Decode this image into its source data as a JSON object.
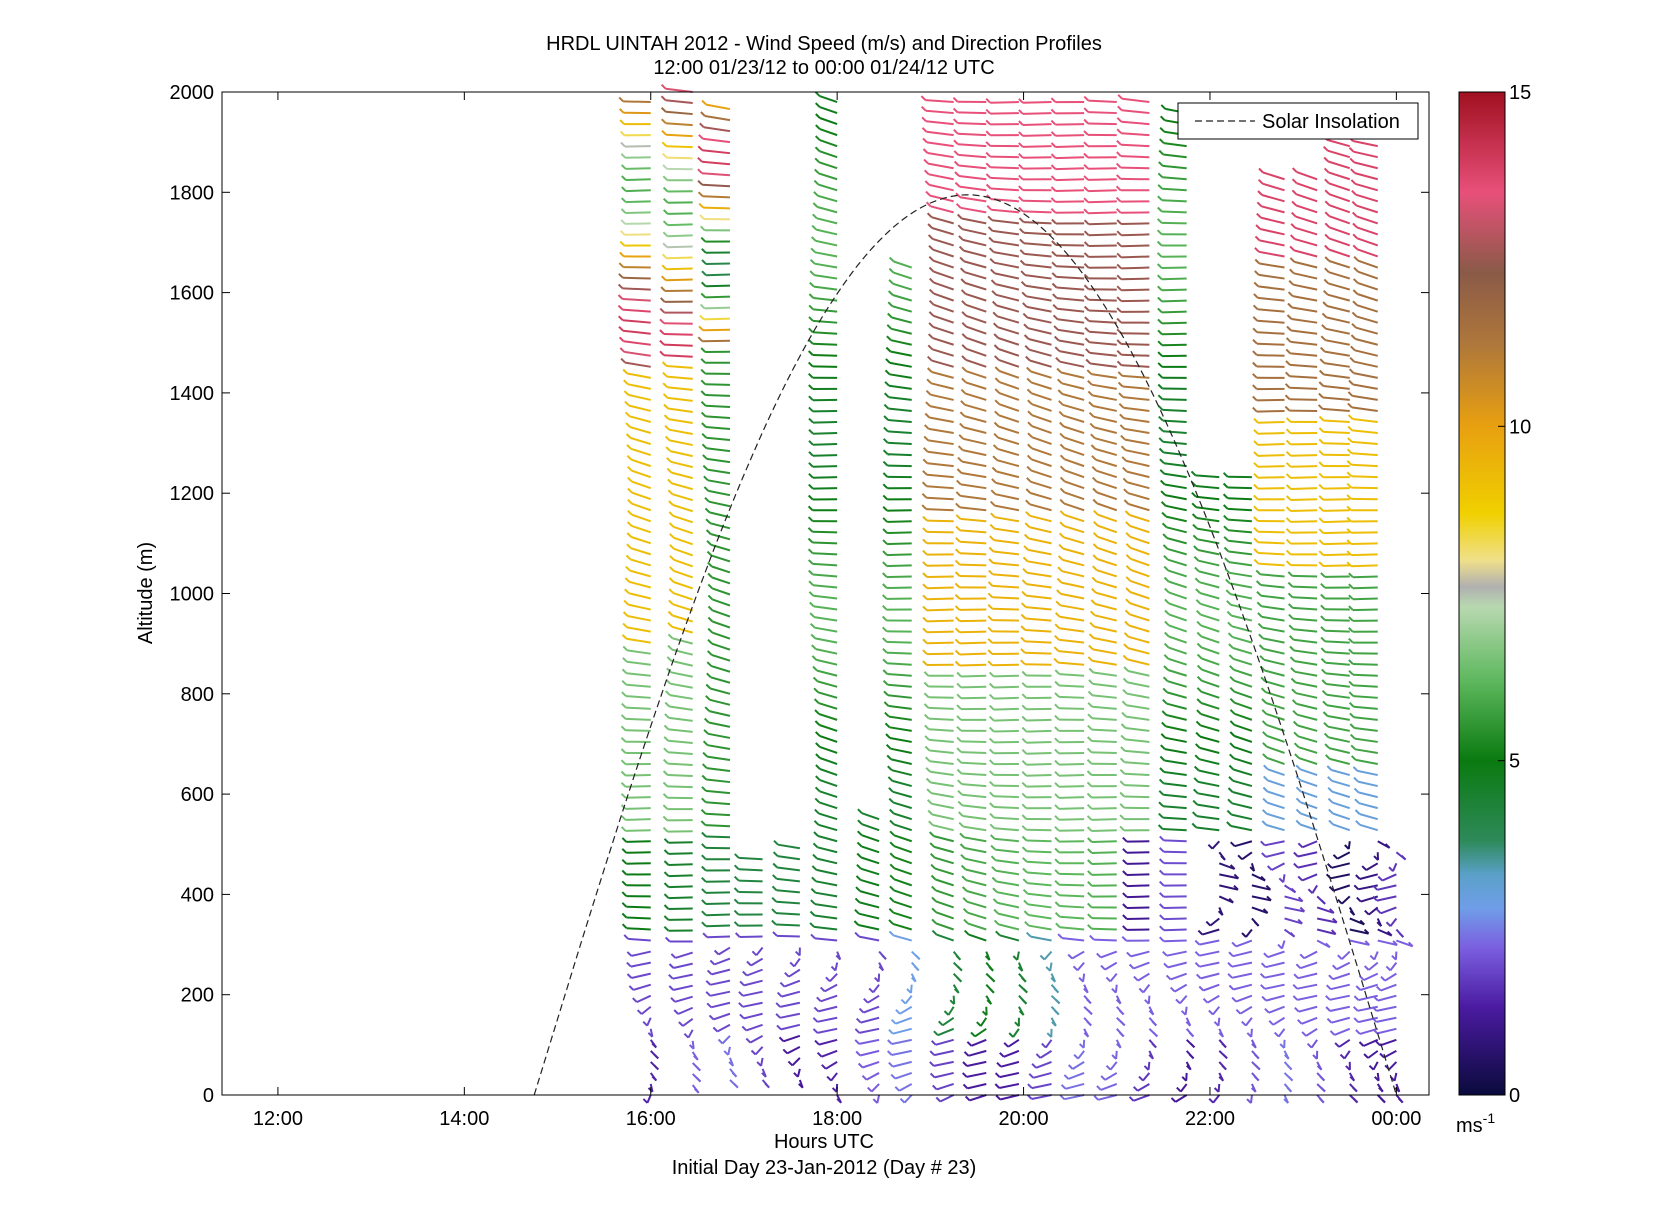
{
  "chart_data": {
    "type": "wind-barb profile",
    "title": "HRDL UINTAH 2012 - Wind Speed (m/s) and Direction Profiles",
    "subtitle": "12:00 01/23/12 to 00:00 01/24/12  UTC",
    "xlabel": "Hours UTC",
    "xlabel2": "Initial Day 23-Jan-2012 (Day # 23)",
    "ylabel": "Altitude (m)",
    "xlim_hours": [
      11.4,
      24.35
    ],
    "ylim": [
      0,
      2000
    ],
    "x_ticks": [
      {
        "hour": 12,
        "label": "12:00"
      },
      {
        "hour": 14,
        "label": "14:00"
      },
      {
        "hour": 16,
        "label": "16:00"
      },
      {
        "hour": 18,
        "label": "18:00"
      },
      {
        "hour": 20,
        "label": "20:00"
      },
      {
        "hour": 22,
        "label": "22:00"
      },
      {
        "hour": 24,
        "label": "00:00"
      }
    ],
    "y_ticks": [
      0,
      200,
      400,
      600,
      800,
      1000,
      1200,
      1400,
      1600,
      1800,
      2000
    ],
    "legend": {
      "entries": [
        "Solar Insolation"
      ],
      "placement": "top-right"
    },
    "colorbar": {
      "range": [
        0,
        15
      ],
      "ticks": [
        0,
        5,
        10,
        15
      ],
      "unit_label": "ms",
      "unit_exponent": "-1",
      "stops": [
        {
          "v": 0.0,
          "color": "#0a0a3c"
        },
        {
          "v": 1.3,
          "color": "#4a1aa0"
        },
        {
          "v": 2.2,
          "color": "#7b5fe0"
        },
        {
          "v": 2.8,
          "color": "#6f9ee8"
        },
        {
          "v": 3.3,
          "color": "#5aa0c8"
        },
        {
          "v": 3.8,
          "color": "#2e8a5a"
        },
        {
          "v": 5.0,
          "color": "#0a7a10"
        },
        {
          "v": 6.2,
          "color": "#5eb85e"
        },
        {
          "v": 7.3,
          "color": "#b8d8b0"
        },
        {
          "v": 7.6,
          "color": "#b0b0b0"
        },
        {
          "v": 8.0,
          "color": "#f0e08a"
        },
        {
          "v": 8.7,
          "color": "#f0d000"
        },
        {
          "v": 10.0,
          "color": "#e8a010"
        },
        {
          "v": 11.2,
          "color": "#b0783a"
        },
        {
          "v": 12.3,
          "color": "#8a5a48"
        },
        {
          "v": 13.5,
          "color": "#e8507a"
        },
        {
          "v": 15.0,
          "color": "#a01020"
        }
      ]
    },
    "solar_insolation": {
      "start_hour": 14.75,
      "peak_hour": 19.4,
      "end_hour": 24.0,
      "peak_altitude": 1795
    },
    "profiles": [
      {
        "hour": 16.0,
        "top": 2000,
        "bottom": 0
      },
      {
        "hour": 16.45,
        "top": 2000,
        "bottom": 20
      },
      {
        "hour": 16.85,
        "top": 1980,
        "bottom": 30
      },
      {
        "hour": 17.2,
        "top": 480,
        "bottom": 30
      },
      {
        "hour": 17.6,
        "top": 500,
        "bottom": 30
      },
      {
        "hour": 18.0,
        "top": 2000,
        "bottom": 0
      },
      {
        "hour": 18.45,
        "top": 560,
        "bottom": 0
      },
      {
        "hour": 18.8,
        "top": 1660,
        "bottom": 0
      },
      {
        "hour": 19.25,
        "top": 2000,
        "bottom": 0
      },
      {
        "hour": 19.6,
        "top": 2000,
        "bottom": 0
      },
      {
        "hour": 19.95,
        "top": 2000,
        "bottom": 0
      },
      {
        "hour": 20.3,
        "top": 2000,
        "bottom": 0
      },
      {
        "hour": 20.65,
        "top": 2000,
        "bottom": 0
      },
      {
        "hour": 21.0,
        "top": 2000,
        "bottom": 0
      },
      {
        "hour": 21.35,
        "top": 2000,
        "bottom": 0
      },
      {
        "hour": 21.75,
        "top": 1960,
        "bottom": 0
      },
      {
        "hour": 22.1,
        "top": 1240,
        "bottom": 0
      },
      {
        "hour": 22.45,
        "top": 1240,
        "bottom": 0
      },
      {
        "hour": 22.8,
        "top": 1840,
        "bottom": 0
      },
      {
        "hour": 23.15,
        "top": 1840,
        "bottom": 0
      },
      {
        "hour": 23.5,
        "top": 1940,
        "bottom": 0
      },
      {
        "hour": 23.8,
        "top": 1940,
        "bottom": 0
      },
      {
        "hour": 24.0,
        "top": 500,
        "bottom": 0
      }
    ]
  }
}
